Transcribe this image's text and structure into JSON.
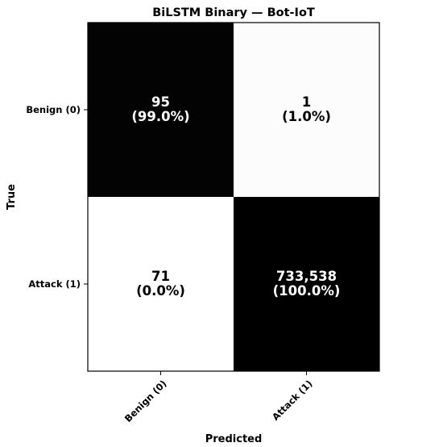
{
  "chart_data": {
    "type": "heatmap",
    "title": "BiLSTM Binary — Bot-IoT",
    "xlabel": "Predicted",
    "ylabel": "True",
    "x_categories": [
      "Benign (0)",
      "Attack (1)"
    ],
    "y_categories": [
      "Benign (0)",
      "Attack (1)"
    ],
    "matrix": [
      [
        95,
        1
      ],
      [
        71,
        733538
      ]
    ],
    "count_labels": [
      [
        "95",
        "1"
      ],
      [
        "71",
        "733,538"
      ]
    ],
    "percent_labels": [
      [
        "(99.0%)",
        "(1.0%)"
      ],
      [
        "(0.0%)",
        "(100.0%)"
      ]
    ],
    "row_normalized": [
      [
        0.99,
        0.01
      ],
      [
        0.0,
        1.0
      ]
    ],
    "colormap": "greys",
    "colors": {
      "low": "#ffffff",
      "high": "#000000"
    },
    "grid": false
  }
}
